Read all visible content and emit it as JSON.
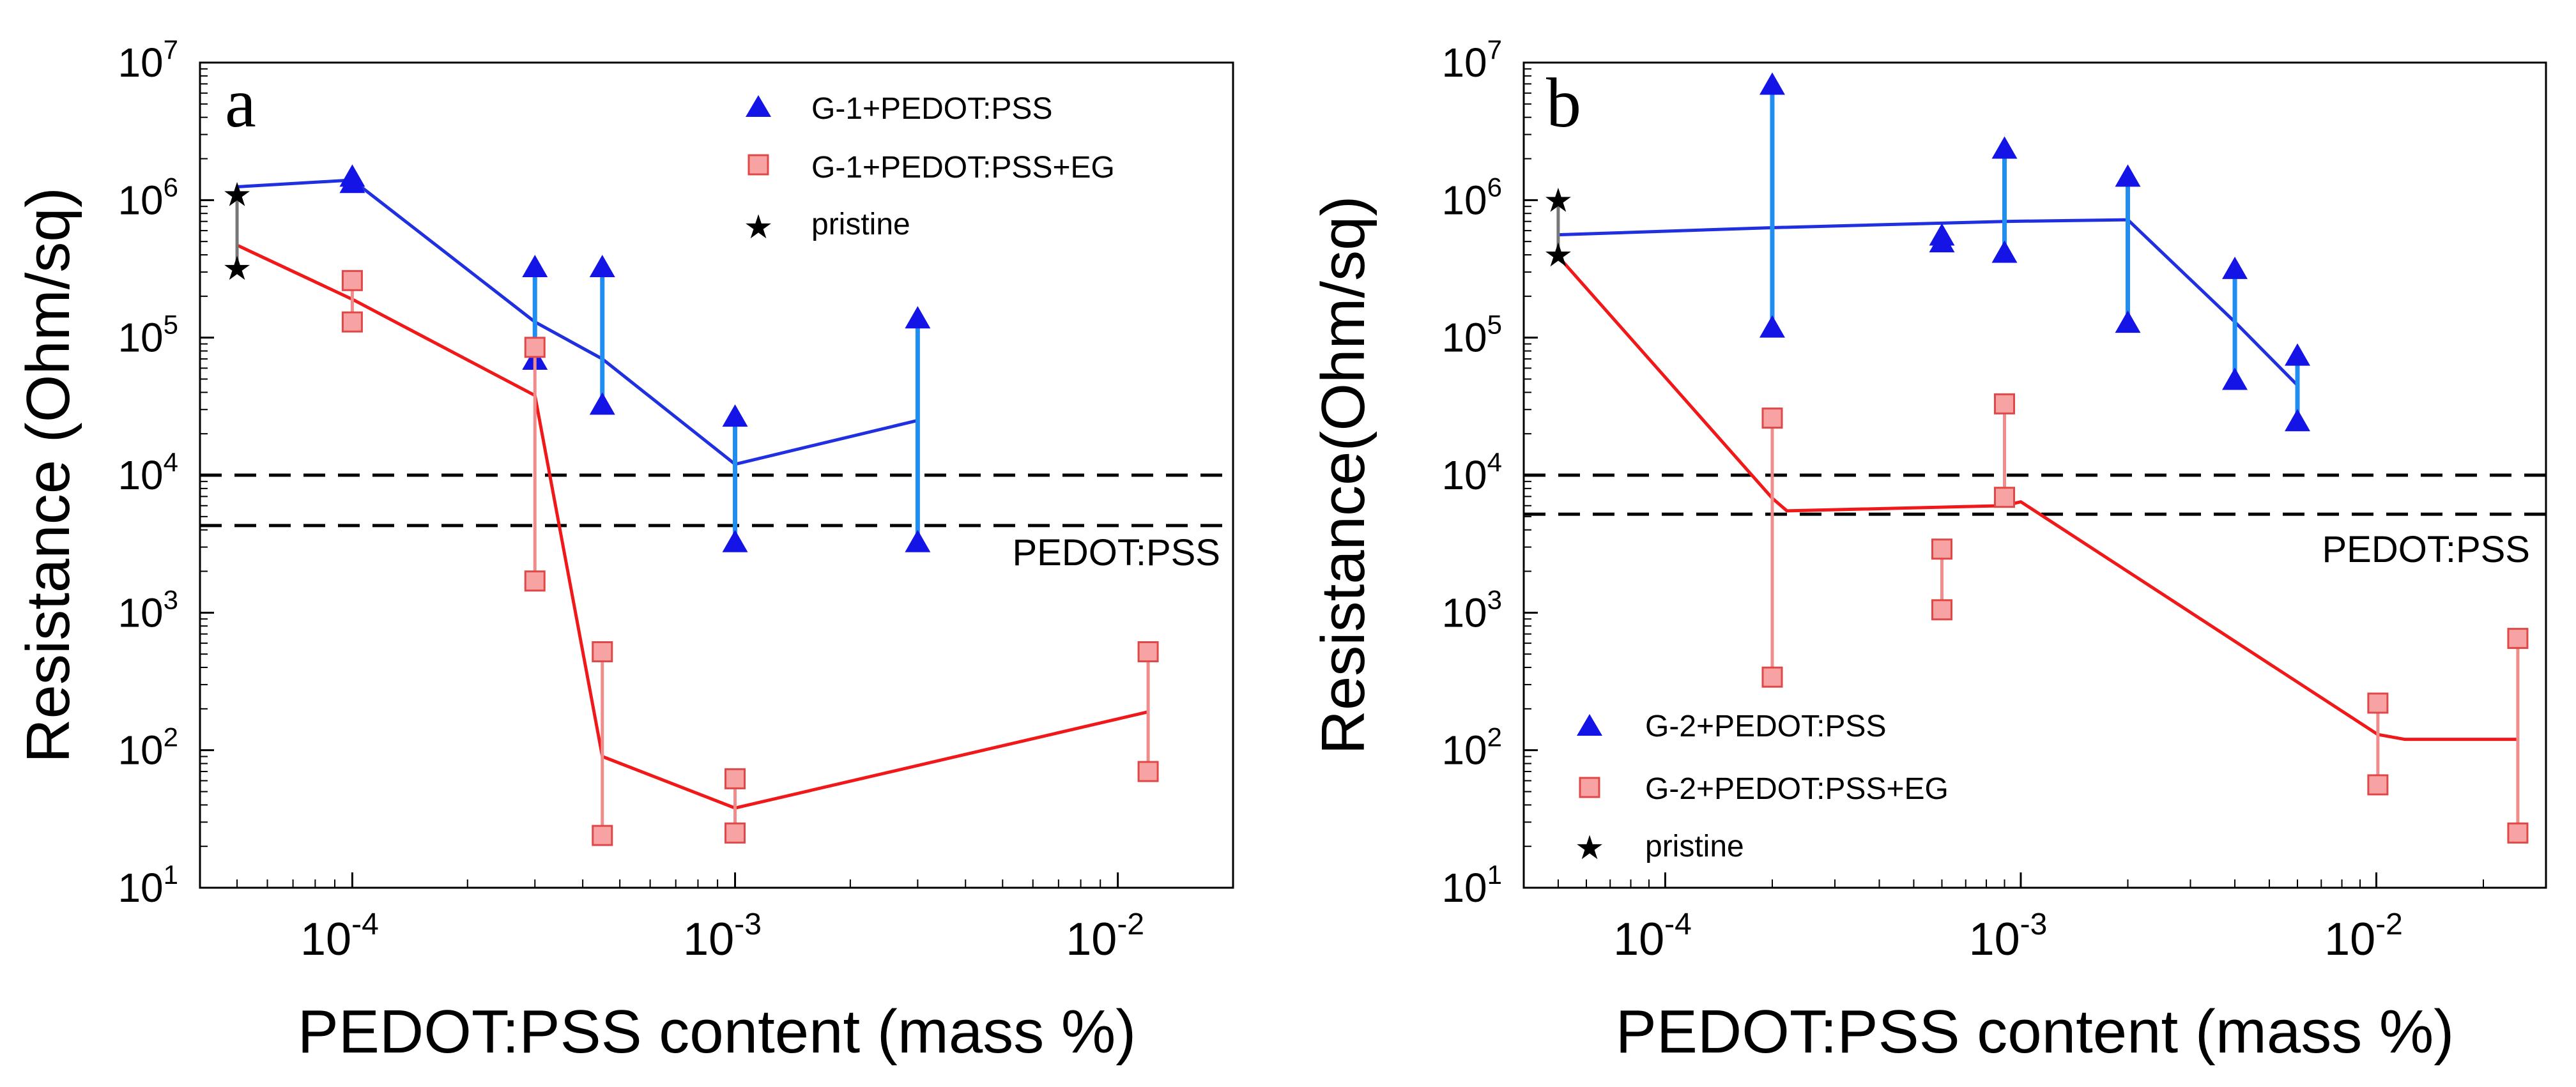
{
  "colors": {
    "blue_marker": "#1414e6",
    "blue_errorbar": "#1f8ef0",
    "red_marker_fill": "#f7a3a3",
    "red_marker_edge": "#e04848",
    "red_errorbar": "#f08c8c",
    "red_line": "#f01818",
    "blue_line": "#2030e0",
    "pristine": "#000000",
    "reference_line": "#000000"
  },
  "chart_data": [
    {
      "type": "scatter",
      "panel": "a",
      "xscale": "log",
      "yscale": "log",
      "xlim": [
        4e-05,
        0.02
      ],
      "ylim": [
        10,
        10000000
      ],
      "xlabel": "PEDOT:PSS content (mass %)",
      "ylabel": "Resistance (Ohm/sq)",
      "x_ticks": [
        {
          "value": 0.0001,
          "base": "10",
          "exp": "-4"
        },
        {
          "value": 0.001,
          "base": "10",
          "exp": "-3"
        },
        {
          "value": 0.01,
          "base": "10",
          "exp": "-2"
        }
      ],
      "y_ticks": [
        {
          "value": 10,
          "base": "10",
          "exp": "1"
        },
        {
          "value": 100,
          "base": "10",
          "exp": "2"
        },
        {
          "value": 1000,
          "base": "10",
          "exp": "3"
        },
        {
          "value": 10000,
          "base": "10",
          "exp": "4"
        },
        {
          "value": 100000,
          "base": "10",
          "exp": "5"
        },
        {
          "value": 1000000,
          "base": "10",
          "exp": "6"
        },
        {
          "value": 10000000,
          "base": "10",
          "exp": "7"
        }
      ],
      "legend_position": "top-right",
      "legend": [
        "G-1+PEDOT:PSS",
        "G-1+PEDOT:PSS+EG",
        "pristine"
      ],
      "reference_lines": {
        "values": [
          10000,
          4300
        ],
        "label": "PEDOT:PSS"
      },
      "series": [
        {
          "name": "G-1+PEDOT:PSS",
          "marker": "triangle",
          "points": [
            {
              "x": 0.0001,
              "low": 1350000,
              "high": 1500000
            },
            {
              "x": 0.0003,
              "low": 70000,
              "high": 330000
            },
            {
              "x": 0.00045,
              "low": 33000,
              "high": 330000
            },
            {
              "x": 0.001,
              "low": 3300,
              "high": 27000
            },
            {
              "x": 0.003,
              "low": 3300,
              "high": 140000
            }
          ],
          "trend": [
            [
              5e-05,
              1250000
            ],
            [
              0.0001,
              1400000
            ],
            [
              0.0003,
              130000
            ],
            [
              0.00045,
              70000
            ],
            [
              0.001,
              12000
            ],
            [
              0.003,
              25000
            ]
          ]
        },
        {
          "name": "G-1+PEDOT:PSS+EG",
          "marker": "square",
          "points": [
            {
              "x": 0.0001,
              "low": 130000,
              "high": 260000
            },
            {
              "x": 0.0003,
              "low": 1700,
              "high": 85000
            },
            {
              "x": 0.00045,
              "low": 24,
              "high": 520
            },
            {
              "x": 0.001,
              "low": 25,
              "high": 62
            },
            {
              "x": 0.012,
              "low": 70,
              "high": 520
            }
          ],
          "trend": [
            [
              5e-05,
              470000
            ],
            [
              0.0001,
              190000
            ],
            [
              0.0003,
              38000
            ],
            [
              0.00045,
              90
            ],
            [
              0.001,
              38
            ],
            [
              0.012,
              190
            ]
          ]
        },
        {
          "name": "pristine",
          "marker": "star",
          "points": [
            {
              "x": 5e-05,
              "low": 320000,
              "high": 1100000
            }
          ]
        }
      ]
    },
    {
      "type": "scatter",
      "panel": "b",
      "xscale": "log",
      "yscale": "log",
      "xlim": [
        4e-05,
        0.03
      ],
      "ylim": [
        10,
        10000000
      ],
      "xlabel": "PEDOT:PSS content (mass %)",
      "ylabel": "Resistance(Ohm/sq)",
      "x_ticks": [
        {
          "value": 0.0001,
          "base": "10",
          "exp": "-4"
        },
        {
          "value": 0.001,
          "base": "10",
          "exp": "-3"
        },
        {
          "value": 0.01,
          "base": "10",
          "exp": "-2"
        }
      ],
      "y_ticks": [
        {
          "value": 10,
          "base": "10",
          "exp": "1"
        },
        {
          "value": 100,
          "base": "10",
          "exp": "2"
        },
        {
          "value": 1000,
          "base": "10",
          "exp": "3"
        },
        {
          "value": 10000,
          "base": "10",
          "exp": "4"
        },
        {
          "value": 100000,
          "base": "10",
          "exp": "5"
        },
        {
          "value": 1000000,
          "base": "10",
          "exp": "6"
        },
        {
          "value": 10000000,
          "base": "10",
          "exp": "7"
        }
      ],
      "legend_position": "bottom-left",
      "legend": [
        "G-2+PEDOT:PSS",
        "G-2+PEDOT:PSS+EG",
        "pristine"
      ],
      "reference_lines": {
        "values": [
          10000,
          5200
        ],
        "label": "PEDOT:PSS"
      },
      "series": [
        {
          "name": "G-2+PEDOT:PSS",
          "marker": "triangle",
          "points": [
            {
              "x": 0.0002,
              "low": 120000,
              "high": 7000000
            },
            {
              "x": 0.0006,
              "low": 500000,
              "high": 560000
            },
            {
              "x": 0.0009,
              "low": 420000,
              "high": 2400000
            },
            {
              "x": 0.002,
              "low": 130000,
              "high": 1500000
            },
            {
              "x": 0.004,
              "low": 50000,
              "high": 320000
            },
            {
              "x": 0.006,
              "low": 25000,
              "high": 75000
            }
          ],
          "trend": [
            [
              5e-05,
              560000
            ],
            [
              0.0002,
              630000
            ],
            [
              0.0009,
              700000
            ],
            [
              0.002,
              720000
            ],
            [
              0.004,
              130000
            ],
            [
              0.006,
              45000
            ]
          ]
        },
        {
          "name": "G-2+PEDOT:PSS+EG",
          "marker": "square",
          "points": [
            {
              "x": 0.0002,
              "low": 340,
              "high": 26000
            },
            {
              "x": 0.0006,
              "low": 1050,
              "high": 2900
            },
            {
              "x": 0.0009,
              "low": 6900,
              "high": 33000
            },
            {
              "x": 0.0101,
              "low": 56,
              "high": 220
            },
            {
              "x": 0.025,
              "low": 25,
              "high": 650
            }
          ],
          "trend": [
            [
              5e-05,
              390000
            ],
            [
              0.0002,
              6800
            ],
            [
              0.00022,
              5500
            ],
            [
              0.0009,
              6000
            ],
            [
              0.001,
              6400
            ],
            [
              0.0101,
              130
            ],
            [
              0.012,
              120
            ],
            [
              0.025,
              120
            ]
          ]
        },
        {
          "name": "pristine",
          "marker": "star",
          "points": [
            {
              "x": 5e-05,
              "low": 400000,
              "high": 1000000
            }
          ]
        }
      ]
    }
  ]
}
